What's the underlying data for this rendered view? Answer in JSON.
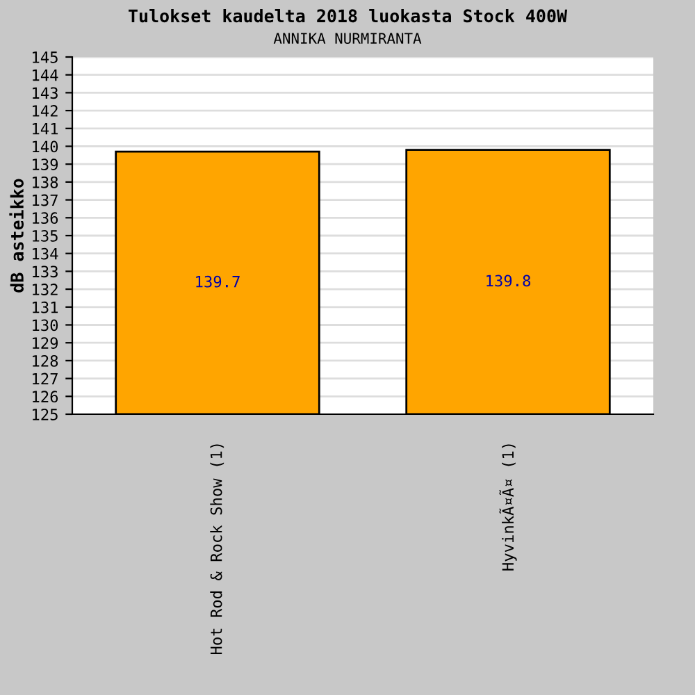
{
  "chart_data": {
    "type": "bar",
    "title": "Tulokset kaudelta 2018 luokasta Stock 400W",
    "subtitle": "ANNIKA NURMIRANTA",
    "ylabel": "dB asteikko",
    "categories": [
      "Hot Rod & Rock Show (1)",
      "HyvinkÃ¤Ã¤ (1)"
    ],
    "values": [
      139.7,
      139.8
    ],
    "color": "#ffa500",
    "data_labels": true,
    "ylim": [
      125,
      145
    ],
    "yticks": [
      125,
      126,
      127,
      128,
      129,
      130,
      131,
      132,
      133,
      134,
      135,
      136,
      137,
      138,
      139,
      140,
      141,
      142,
      143,
      144,
      145
    ],
    "grid": "y"
  }
}
